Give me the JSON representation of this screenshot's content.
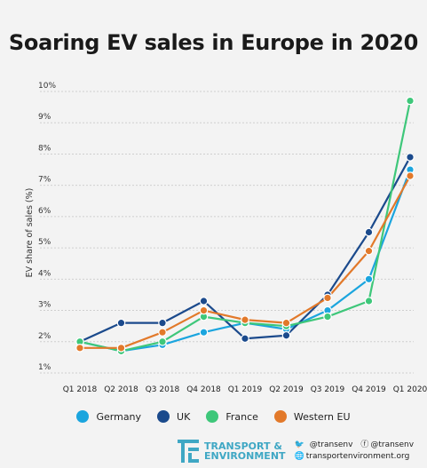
{
  "title": "Soaring EV sales in Europe in 2020",
  "chart_data": {
    "type": "line",
    "title": "Soaring EV sales in Europe in 2020",
    "ylabel": "EV share of sales (%)",
    "xlabel": "",
    "categories": [
      "Q1 2018",
      "Q2 2018",
      "Q3 2018",
      "Q4 2018",
      "Q1 2019",
      "Q2 2019",
      "Q3 2019",
      "Q4 2019",
      "Q1 2020"
    ],
    "yticks": [
      "1%",
      "2%",
      "3%",
      "4%",
      "5%",
      "6%",
      "7%",
      "8%",
      "9%",
      "10%"
    ],
    "ylim": [
      1,
      10
    ],
    "grid": true,
    "legend_position": "bottom",
    "series": [
      {
        "name": "Germany",
        "color": "#1ba5de",
        "values": [
          2.0,
          1.7,
          1.9,
          2.3,
          2.6,
          2.4,
          3.0,
          4.0,
          7.5
        ]
      },
      {
        "name": "UK",
        "color": "#1b4a8c",
        "values": [
          2.0,
          2.6,
          2.6,
          3.3,
          2.1,
          2.2,
          3.5,
          5.5,
          7.9
        ]
      },
      {
        "name": "France",
        "color": "#3ec77a",
        "values": [
          2.0,
          1.7,
          2.0,
          2.8,
          2.6,
          2.5,
          2.8,
          3.3,
          9.7
        ]
      },
      {
        "name": "Western EU",
        "color": "#e2792a",
        "values": [
          1.8,
          1.8,
          2.3,
          3.0,
          2.7,
          2.6,
          3.4,
          4.9,
          7.3
        ]
      }
    ]
  },
  "footer": {
    "logo_line1": "TRANSPORT &",
    "logo_line2": "ENVIRONMENT",
    "twitter": "@transenv",
    "facebook": "@transenv",
    "website": "transportenvironment.org"
  }
}
